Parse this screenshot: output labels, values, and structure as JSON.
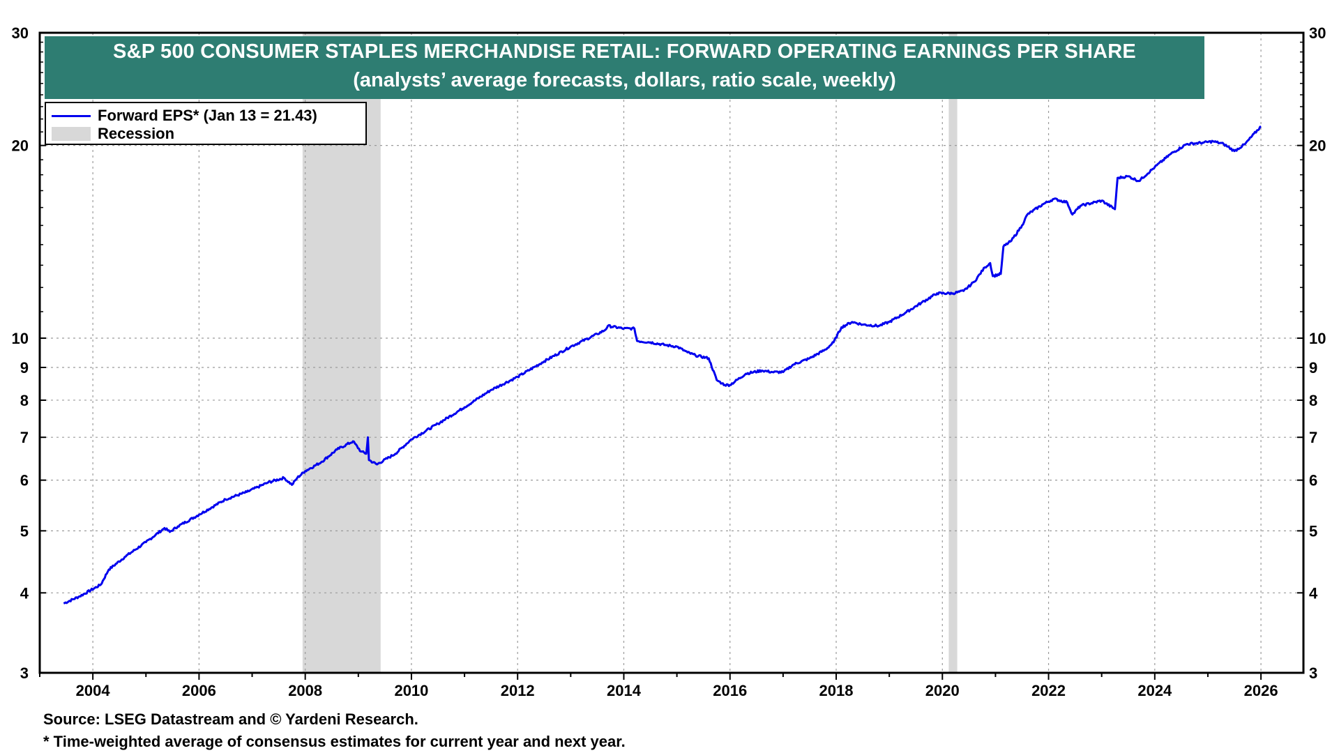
{
  "chart_data": {
    "type": "line",
    "title": "S&P 500 CONSUMER STAPLES MERCHANDISE RETAIL: FORWARD OPERATING EARNINGS PER SHARE",
    "subtitle": "(analysts’ average forecasts, dollars, ratio scale, weekly)",
    "xlabel": "",
    "ylabel": "",
    "y_scale": "log",
    "ylim": [
      3,
      30
    ],
    "xlim": [
      2003.0,
      2026.8
    ],
    "x_ticks": [
      2004,
      2006,
      2008,
      2010,
      2012,
      2014,
      2016,
      2018,
      2020,
      2022,
      2024,
      2026
    ],
    "x_tick_labels": [
      "2004",
      "2006",
      "2008",
      "2010",
      "2012",
      "2014",
      "2016",
      "2018",
      "2020",
      "2022",
      "2024",
      "2026"
    ],
    "y_ticks": [
      3,
      4,
      5,
      6,
      7,
      8,
      9,
      10,
      20,
      30
    ],
    "y_tick_labels": [
      "3",
      "4",
      "5",
      "6",
      "7",
      "8",
      "9",
      "10",
      "20",
      "30"
    ],
    "grid": true,
    "series": [
      {
        "name": "Forward EPS",
        "color": "#0000ee",
        "x": [
          2003.45,
          2003.75,
          2004.15,
          2004.3,
          2004.6,
          2005.0,
          2005.35,
          2005.45,
          2005.6,
          2006.0,
          2006.5,
          2006.9,
          2007.3,
          2007.6,
          2007.75,
          2007.85,
          2008.0,
          2008.3,
          2008.6,
          2008.9,
          2009.05,
          2009.15,
          2009.18,
          2009.2,
          2009.35,
          2009.7,
          2010.0,
          2010.5,
          2011.0,
          2011.5,
          2012.0,
          2012.5,
          2013.0,
          2013.5,
          2013.65,
          2013.7,
          2014.0,
          2014.2,
          2014.25,
          2014.5,
          2014.8,
          2015.0,
          2015.2,
          2015.35,
          2015.6,
          2015.75,
          2015.85,
          2015.9,
          2016.0,
          2016.3,
          2016.6,
          2016.8,
          2017.0,
          2017.2,
          2017.5,
          2017.8,
          2017.95,
          2018.1,
          2018.3,
          2018.5,
          2018.8,
          2019.0,
          2019.3,
          2019.6,
          2019.9,
          2020.2,
          2020.4,
          2020.6,
          2020.8,
          2020.9,
          2020.95,
          2021.1,
          2021.15,
          2021.3,
          2021.5,
          2021.6,
          2021.9,
          2022.1,
          2022.35,
          2022.45,
          2022.6,
          2023.0,
          2023.25,
          2023.3,
          2023.5,
          2023.7,
          2024.0,
          2024.3,
          2024.6,
          2024.9,
          2025.1,
          2025.3,
          2025.5,
          2025.7,
          2026.0
        ],
        "values": [
          3.85,
          3.95,
          4.12,
          4.35,
          4.55,
          4.8,
          5.05,
          4.98,
          5.08,
          5.3,
          5.6,
          5.75,
          5.95,
          6.05,
          5.9,
          6.05,
          6.2,
          6.4,
          6.7,
          6.9,
          6.65,
          6.6,
          7.0,
          6.45,
          6.35,
          6.6,
          6.95,
          7.35,
          7.8,
          8.3,
          8.7,
          9.2,
          9.7,
          10.15,
          10.3,
          10.45,
          10.35,
          10.35,
          9.9,
          9.85,
          9.75,
          9.7,
          9.5,
          9.4,
          9.3,
          8.6,
          8.5,
          8.45,
          8.45,
          8.8,
          8.9,
          8.85,
          8.85,
          9.1,
          9.3,
          9.6,
          9.85,
          10.4,
          10.6,
          10.5,
          10.45,
          10.6,
          10.95,
          11.35,
          11.75,
          11.75,
          11.85,
          12.25,
          12.9,
          13.1,
          12.5,
          12.6,
          13.9,
          14.2,
          15.0,
          15.6,
          16.2,
          16.5,
          16.3,
          15.6,
          16.1,
          16.4,
          15.9,
          17.8,
          17.9,
          17.6,
          18.5,
          19.4,
          20.1,
          20.2,
          20.3,
          20.1,
          19.6,
          20.1,
          21.43
        ]
      }
    ],
    "recessions": [
      [
        2007.95,
        2009.42
      ],
      [
        2020.12,
        2020.28
      ]
    ],
    "annotations": []
  },
  "legend": {
    "forward_eps_label": "Forward EPS* (Jan 13 = 21.43)",
    "recession_label": "Recession",
    "line_color": "#0000ee",
    "recession_color": "#d8d8d8"
  },
  "footer": {
    "source": "Source: LSEG Datastream and © Yardeni Research.",
    "note": "* Time-weighted average of consensus estimates for current year and next year."
  }
}
